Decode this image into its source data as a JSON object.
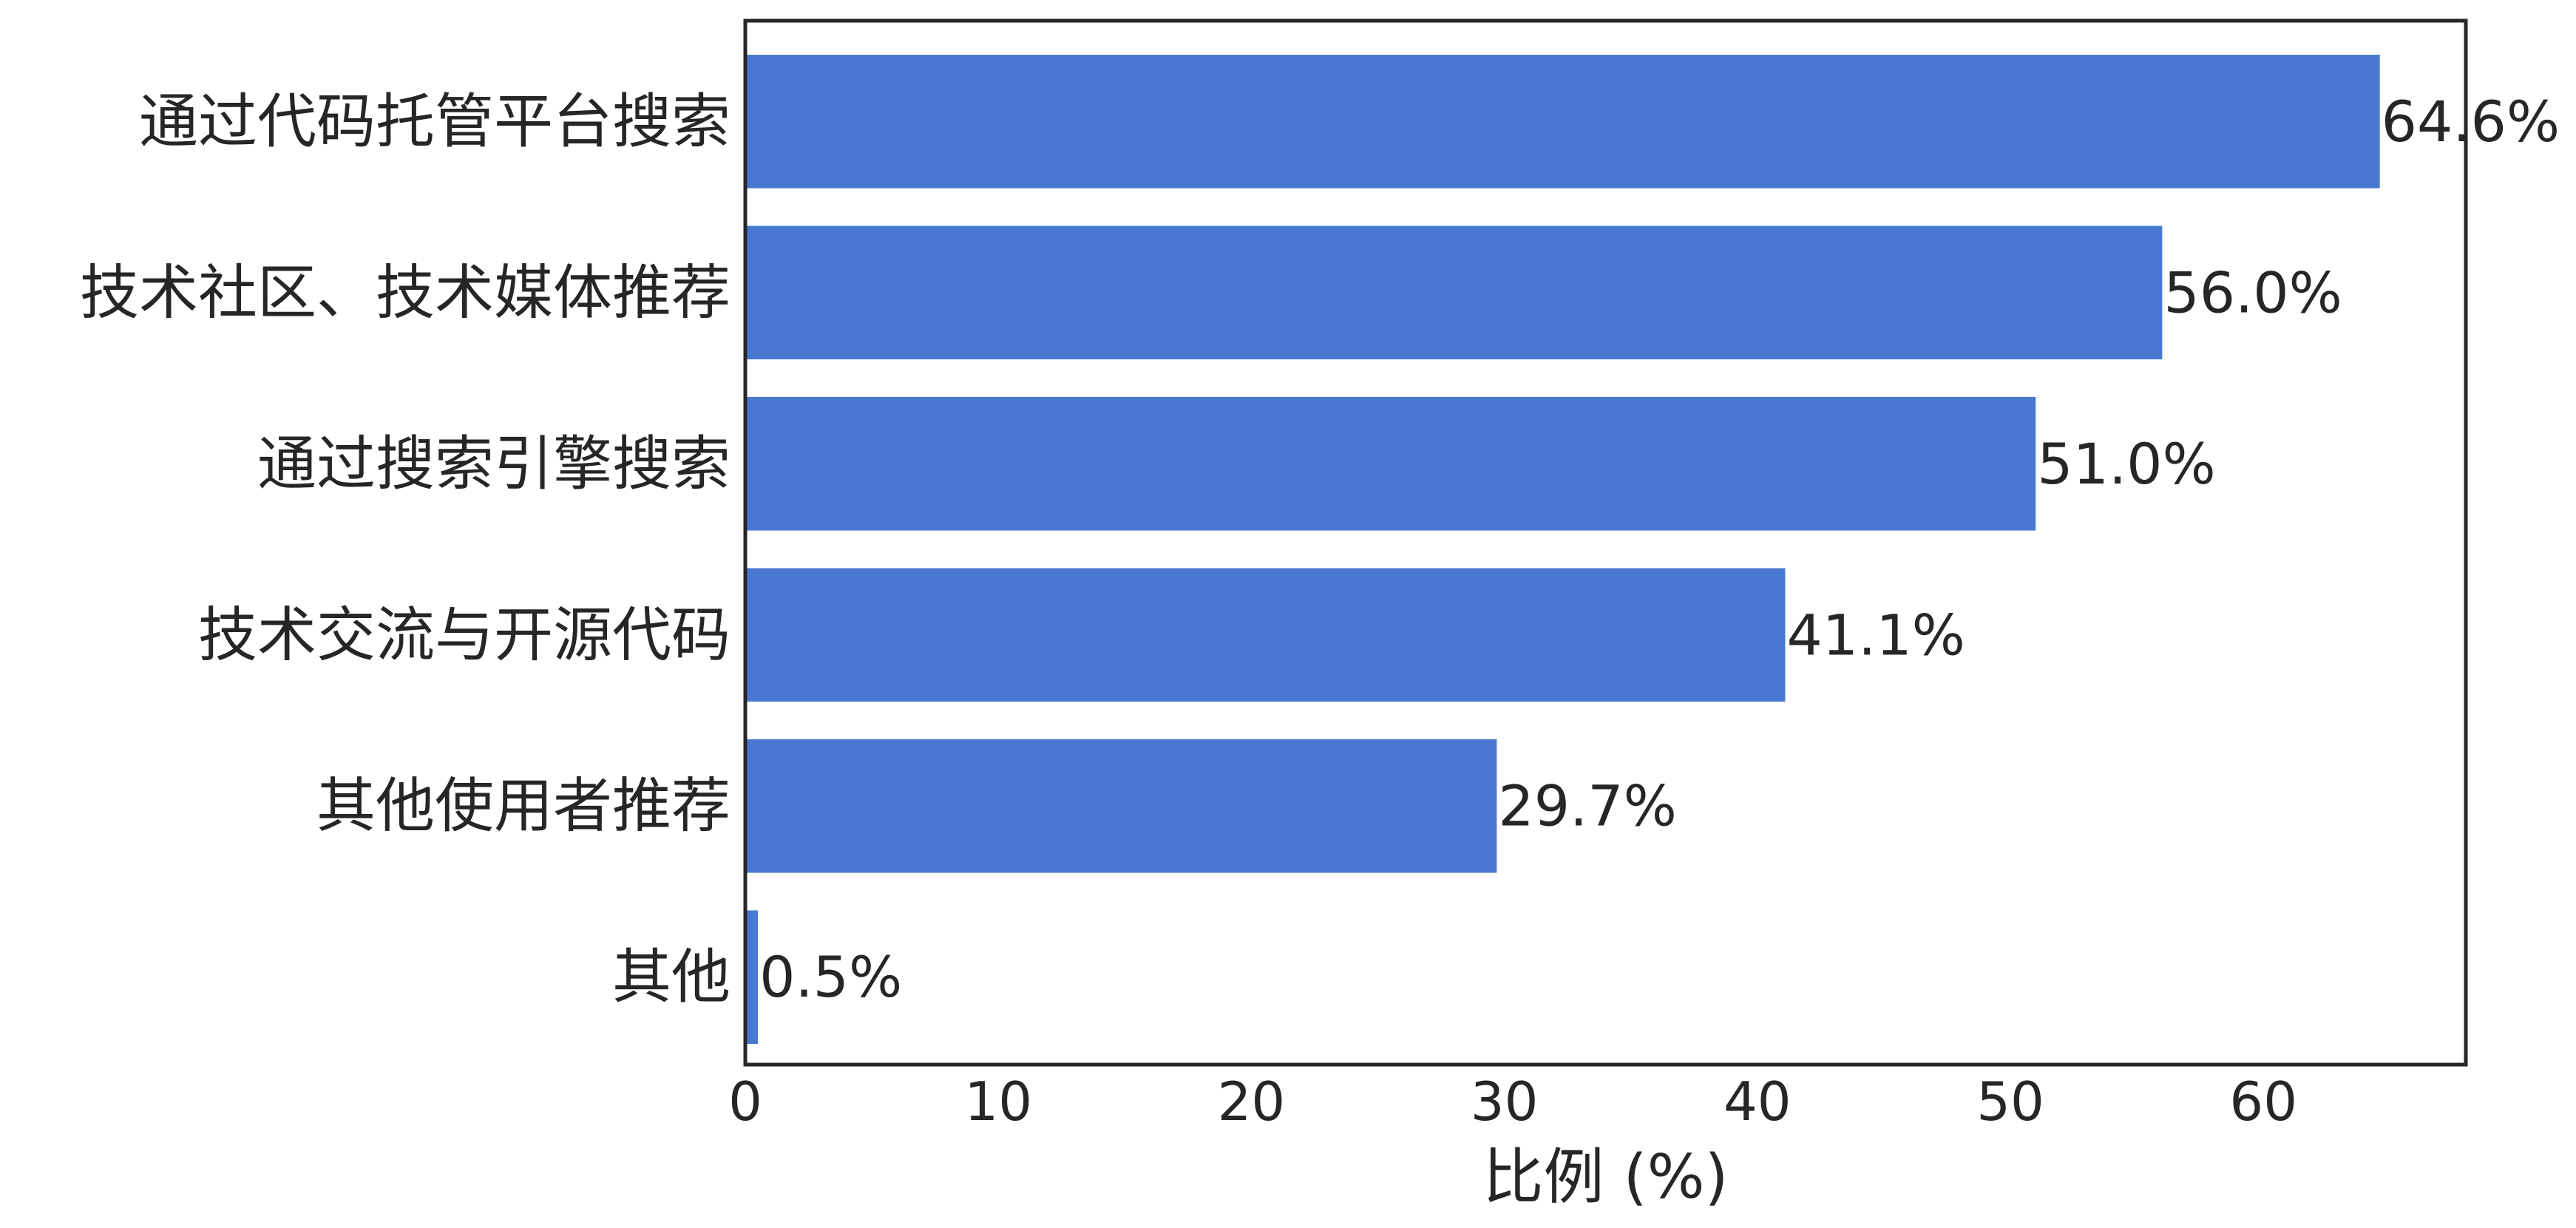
{
  "chart_data": {
    "type": "bar",
    "orientation": "horizontal",
    "categories": [
      "通过代码托管平台搜索",
      "技术社区、技术媒体推荐",
      "通过搜索引擎搜索",
      "技术交流与开源代码",
      "其他使用者推荐",
      "其他"
    ],
    "values": [
      64.6,
      56.0,
      51.0,
      41.1,
      29.7,
      0.5
    ],
    "data_labels": [
      "64.6%",
      "56.0%",
      "51.0%",
      "41.1%",
      "29.7%",
      "0.5%"
    ],
    "xlabel": "比例 (%)",
    "ylabel": "",
    "xlim": [
      0,
      68
    ],
    "xticks": [
      0,
      10,
      20,
      30,
      40,
      50,
      60
    ],
    "grid": false,
    "legend": "none",
    "bar_color": "#4878d0",
    "text_color": "#262626",
    "axis_color": "#262626"
  }
}
